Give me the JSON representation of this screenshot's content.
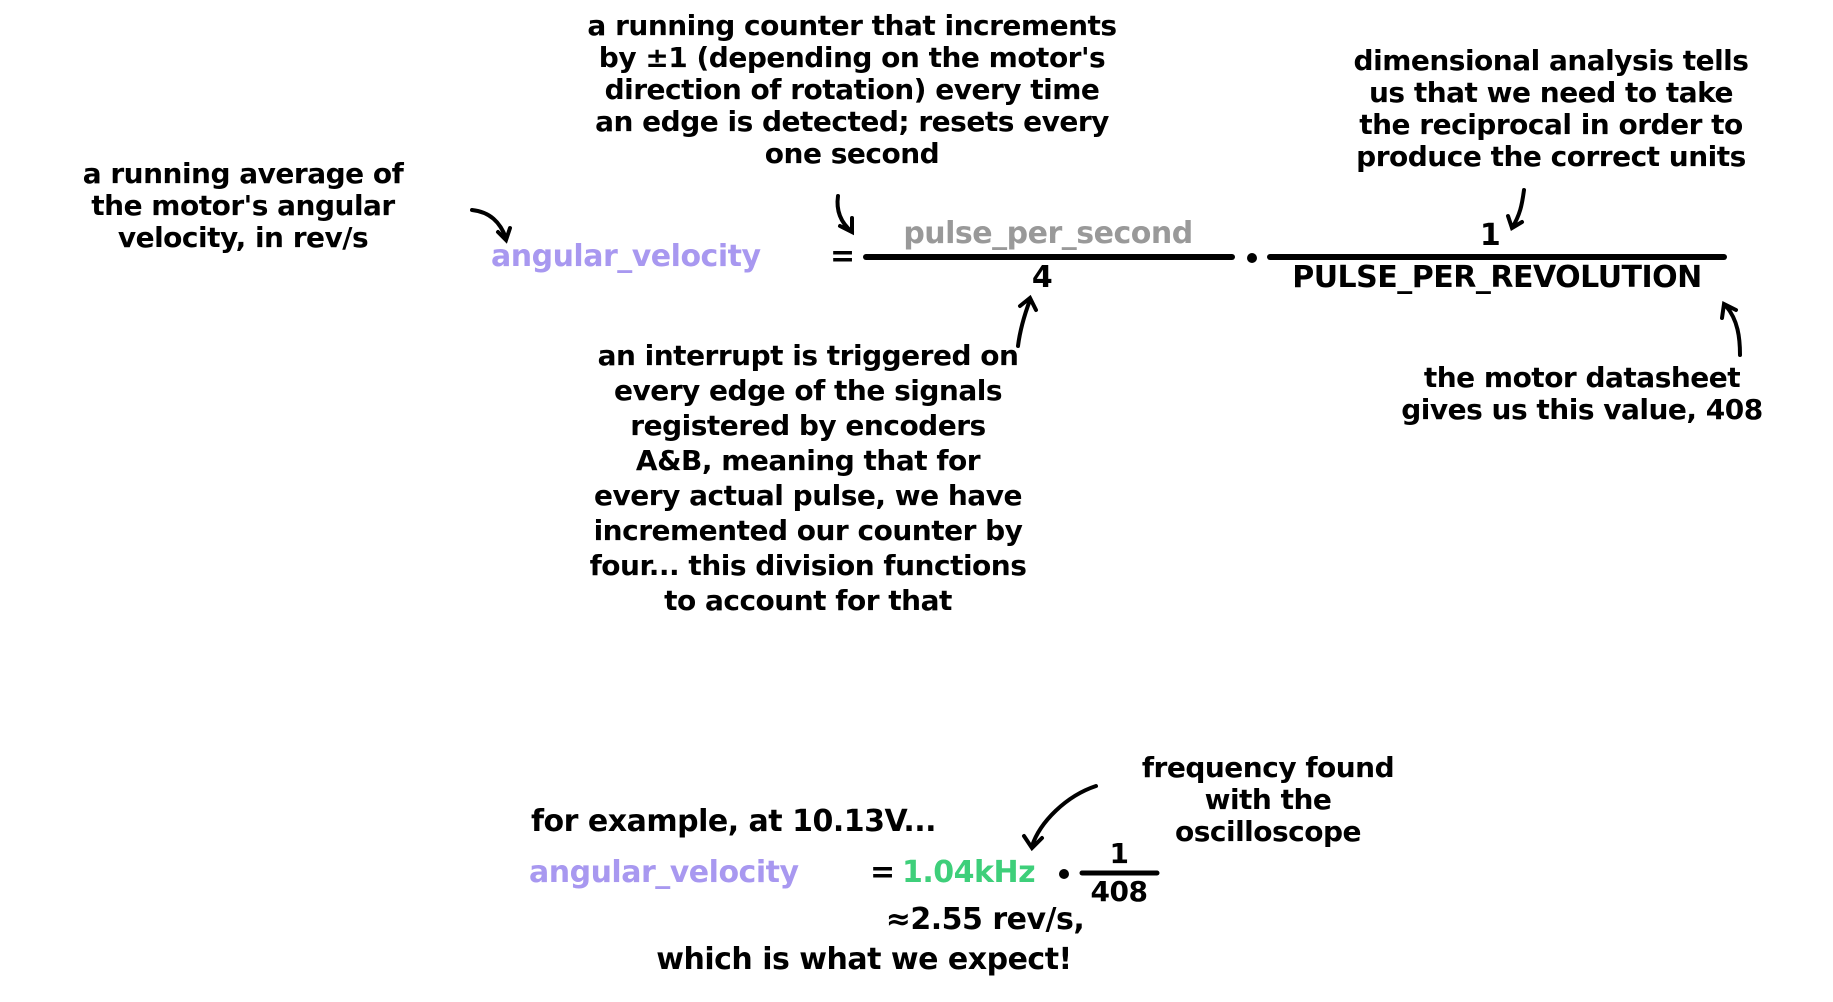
{
  "annotations": {
    "counter": [
      "a running counter that increments",
      "by ±1 (depending on the motor's",
      "direction of rotation) every time",
      "an edge is detected; resets every",
      "one second"
    ],
    "reciprocal": [
      "dimensional analysis tells",
      "us that we need to take",
      "the reciprocal in order to",
      "produce the correct units"
    ],
    "average": [
      "a running average of",
      "the motor's angular",
      "velocity, in rev/s"
    ],
    "interrupt": [
      "an interrupt is triggered on",
      "every edge of the signals",
      "registered by encoders",
      "A&B, meaning that for",
      "every actual pulse, we have",
      "incremented our counter by",
      "four... this division functions",
      "to account for that"
    ],
    "datasheet": [
      "the motor datasheet",
      "gives us this value, 408"
    ],
    "frequency": [
      "frequency found",
      "with the",
      "oscilloscope"
    ]
  },
  "equation": {
    "lhs": "angular_velocity",
    "equals": "=",
    "numerator1": "pulse_per_second",
    "denominator1": "4",
    "dot": "•",
    "numerator2": "1",
    "denominator2": "PULSE_PER_REVOLUTION"
  },
  "example": {
    "intro": "for example, at 10.13V...",
    "lhs": "angular_velocity",
    "equals": "=",
    "frequency": "1.04kHz",
    "dot": "•",
    "numerator": "1",
    "denominator": "408",
    "result": "≈2.55 rev/s,",
    "conclusion": "which is what we expect!"
  },
  "colors": {
    "variable": "#a898f0",
    "pulse": "#999999",
    "measured": "#3ecf7a",
    "ink": "#000000"
  }
}
